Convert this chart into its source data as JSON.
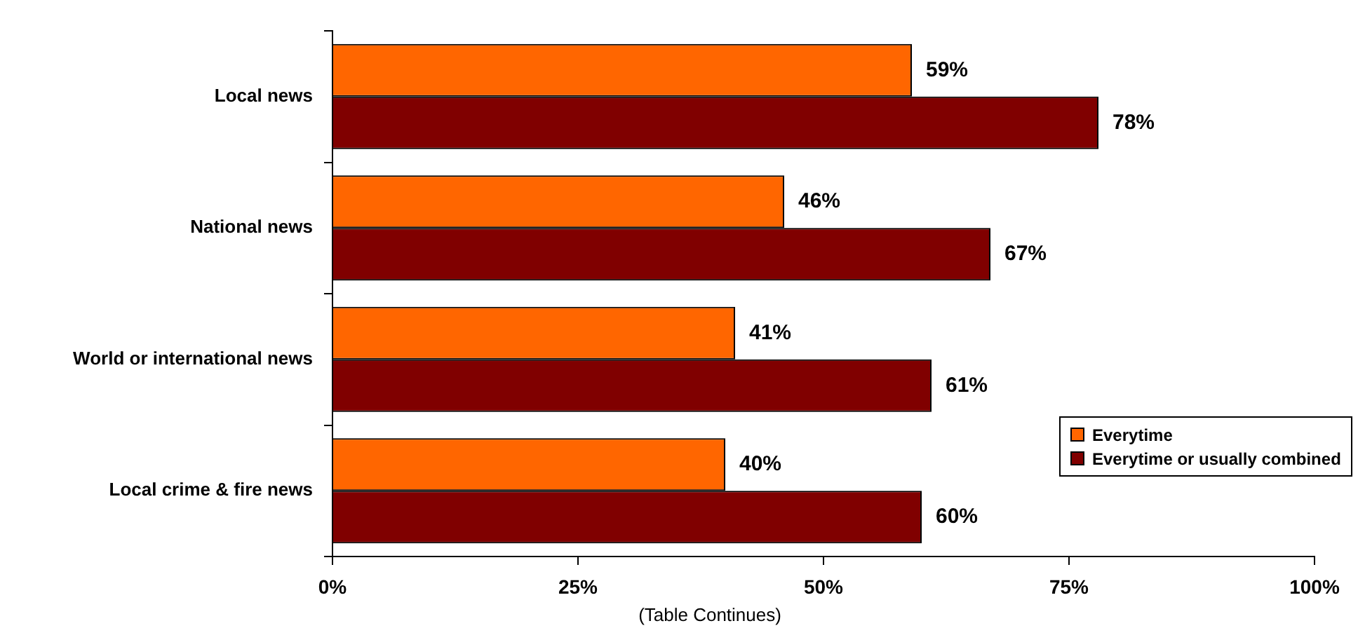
{
  "chart_data": {
    "type": "bar",
    "orientation": "horizontal",
    "categories": [
      "Local news",
      "National news",
      "World or international news",
      "Local crime & fire news"
    ],
    "series": [
      {
        "name": "Everytime",
        "color": "#ff6600",
        "values": [
          59,
          46,
          41,
          40
        ],
        "value_labels": [
          "59%",
          "46%",
          "41%",
          "40%"
        ]
      },
      {
        "name": "Everytime or usually combined",
        "color": "#800000",
        "values": [
          78,
          67,
          61,
          60
        ],
        "value_labels": [
          "78%",
          "67%",
          "61%",
          "60%"
        ]
      }
    ],
    "xlim": [
      0,
      100
    ],
    "xticks": [
      {
        "value": 0,
        "label": "0%"
      },
      {
        "value": 25,
        "label": "25%"
      },
      {
        "value": 50,
        "label": "50%"
      },
      {
        "value": 75,
        "label": "75%"
      },
      {
        "value": 100,
        "label": "100%"
      }
    ],
    "legend": "bottom right",
    "annotations": [
      "(Table Continues)"
    ]
  }
}
